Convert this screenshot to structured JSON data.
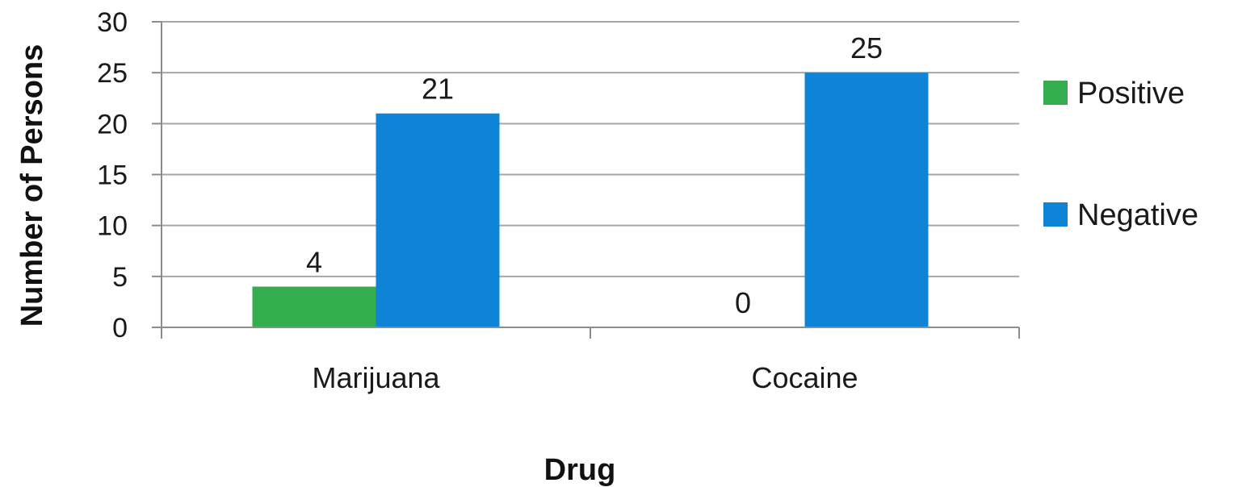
{
  "chart_data": {
    "type": "bar",
    "categories": [
      "Marijuana",
      "Cocaine"
    ],
    "series": [
      {
        "name": "Positive",
        "values": [
          4,
          0
        ],
        "color": "#34ad4e"
      },
      {
        "name": "Negative",
        "values": [
          21,
          25
        ],
        "color": "#0f84d6"
      }
    ],
    "xlabel": "Drug",
    "ylabel": "Number of Persons",
    "ylim": [
      0,
      30
    ],
    "yticks": [
      0,
      5,
      10,
      15,
      20,
      25,
      30
    ],
    "grid": true,
    "legend": "right"
  }
}
